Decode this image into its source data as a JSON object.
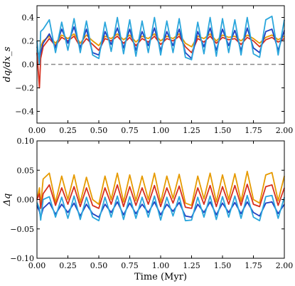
{
  "chart_data": [
    {
      "type": "line",
      "title": "",
      "xlabel": "",
      "ylabel": "dq/dx_s",
      "xlim": [
        0.0,
        2.0
      ],
      "ylim": [
        -0.5,
        0.5
      ],
      "xticks": [
        "0.00",
        "0.25",
        "0.50",
        "0.75",
        "1.00",
        "1.25",
        "1.50",
        "1.75",
        "2.00"
      ],
      "yticks": [
        "−0.4",
        "−0.2",
        "0.0",
        "0.2",
        "0.4"
      ],
      "grid": false,
      "reference_line": {
        "y": 0.0,
        "style": "dashed",
        "color": "#8a8a8a"
      },
      "x": [
        0.0,
        0.02,
        0.03,
        0.05,
        0.1,
        0.15,
        0.2,
        0.25,
        0.3,
        0.35,
        0.4,
        0.45,
        0.5,
        0.55,
        0.6,
        0.65,
        0.7,
        0.75,
        0.8,
        0.85,
        0.9,
        0.95,
        1.0,
        1.05,
        1.1,
        1.15,
        1.2,
        1.25,
        1.3,
        1.35,
        1.4,
        1.45,
        1.5,
        1.55,
        1.6,
        1.65,
        1.7,
        1.75,
        1.8,
        1.85,
        1.9,
        1.95,
        2.0
      ],
      "series": [
        {
          "color": "#e69a00",
          "values": [
            0.12,
            0.08,
            0.15,
            0.2,
            0.24,
            0.18,
            0.25,
            0.22,
            0.26,
            0.18,
            0.25,
            0.2,
            0.16,
            0.24,
            0.22,
            0.26,
            0.21,
            0.25,
            0.19,
            0.24,
            0.22,
            0.26,
            0.2,
            0.24,
            0.22,
            0.26,
            0.18,
            0.15,
            0.24,
            0.22,
            0.26,
            0.2,
            0.25,
            0.23,
            0.24,
            0.2,
            0.25,
            0.22,
            0.18,
            0.23,
            0.25,
            0.21,
            0.24
          ]
        },
        {
          "color": "#d7301f",
          "values": [
            0.1,
            -0.2,
            0.05,
            0.15,
            0.22,
            0.16,
            0.23,
            0.2,
            0.24,
            0.15,
            0.22,
            0.17,
            0.12,
            0.22,
            0.2,
            0.24,
            0.18,
            0.23,
            0.16,
            0.22,
            0.19,
            0.24,
            0.17,
            0.22,
            0.2,
            0.24,
            0.15,
            0.1,
            0.22,
            0.19,
            0.24,
            0.18,
            0.23,
            0.21,
            0.22,
            0.17,
            0.23,
            0.2,
            0.15,
            0.21,
            0.23,
            0.19,
            0.22
          ]
        },
        {
          "color": "#2140c0",
          "values": [
            0.15,
            0.05,
            0.1,
            0.18,
            0.26,
            0.14,
            0.3,
            0.18,
            0.32,
            0.14,
            0.3,
            0.1,
            0.08,
            0.28,
            0.17,
            0.31,
            0.14,
            0.3,
            0.12,
            0.28,
            0.16,
            0.31,
            0.12,
            0.28,
            0.16,
            0.3,
            0.1,
            0.05,
            0.28,
            0.15,
            0.31,
            0.12,
            0.3,
            0.16,
            0.29,
            0.12,
            0.31,
            0.14,
            0.1,
            0.28,
            0.3,
            0.12,
            0.29
          ]
        },
        {
          "color": "#2aa6dc",
          "values": [
            0.2,
            0.0,
            0.28,
            0.3,
            0.38,
            0.1,
            0.36,
            0.12,
            0.39,
            0.1,
            0.37,
            0.08,
            0.05,
            0.36,
            0.11,
            0.4,
            0.09,
            0.38,
            0.07,
            0.37,
            0.1,
            0.4,
            0.08,
            0.37,
            0.1,
            0.39,
            0.06,
            0.04,
            0.36,
            0.09,
            0.4,
            0.07,
            0.39,
            0.1,
            0.38,
            0.08,
            0.4,
            0.09,
            0.06,
            0.38,
            0.41,
            0.08,
            0.38
          ]
        }
      ]
    },
    {
      "type": "line",
      "title": "",
      "xlabel": "Time (Myr)",
      "ylabel": "Δq",
      "xlim": [
        0.0,
        2.0
      ],
      "ylim": [
        -0.1,
        0.1
      ],
      "xticks": [
        "0.00",
        "0.25",
        "0.50",
        "0.75",
        "1.00",
        "1.25",
        "1.50",
        "1.75",
        "2.00"
      ],
      "yticks": [
        "−0.10",
        "−0.05",
        "0.00",
        "0.05",
        "0.10"
      ],
      "grid": false,
      "x": [
        0.0,
        0.02,
        0.03,
        0.05,
        0.1,
        0.15,
        0.2,
        0.25,
        0.3,
        0.35,
        0.4,
        0.45,
        0.5,
        0.55,
        0.6,
        0.65,
        0.7,
        0.75,
        0.8,
        0.85,
        0.9,
        0.95,
        1.0,
        1.05,
        1.1,
        1.15,
        1.2,
        1.25,
        1.3,
        1.35,
        1.4,
        1.45,
        1.5,
        1.55,
        1.6,
        1.65,
        1.7,
        1.75,
        1.8,
        1.85,
        1.9,
        1.95,
        2.0
      ],
      "series": [
        {
          "color": "#e69a00",
          "values": [
            0.0,
            0.02,
            -0.01,
            0.035,
            0.045,
            -0.005,
            0.04,
            0.0,
            0.042,
            -0.005,
            0.038,
            0.0,
            -0.008,
            0.04,
            0.0,
            0.045,
            -0.004,
            0.042,
            -0.002,
            0.04,
            0.0,
            0.045,
            -0.005,
            0.04,
            0.002,
            0.043,
            -0.006,
            -0.01,
            0.04,
            0.001,
            0.045,
            -0.004,
            0.042,
            0.0,
            0.044,
            -0.003,
            0.048,
            0.0,
            -0.006,
            0.042,
            0.046,
            -0.002,
            0.04
          ]
        },
        {
          "color": "#d7301f",
          "values": [
            0.0,
            0.01,
            -0.015,
            0.01,
            0.025,
            -0.01,
            0.02,
            -0.008,
            0.022,
            -0.012,
            0.02,
            -0.01,
            -0.015,
            0.02,
            -0.008,
            0.025,
            -0.012,
            0.022,
            -0.01,
            0.02,
            -0.008,
            0.024,
            -0.012,
            0.02,
            -0.006,
            0.023,
            -0.013,
            -0.015,
            0.02,
            -0.008,
            0.024,
            -0.012,
            0.022,
            -0.008,
            0.024,
            -0.01,
            0.026,
            -0.008,
            -0.012,
            0.022,
            0.025,
            -0.01,
            0.02
          ]
        },
        {
          "color": "#2140c0",
          "values": [
            -0.01,
            -0.02,
            -0.03,
            -0.015,
            -0.005,
            -0.025,
            -0.008,
            -0.022,
            -0.006,
            -0.028,
            -0.008,
            -0.024,
            -0.03,
            -0.008,
            -0.022,
            -0.004,
            -0.026,
            -0.006,
            -0.024,
            -0.008,
            -0.022,
            -0.004,
            -0.026,
            -0.008,
            -0.02,
            -0.005,
            -0.028,
            -0.03,
            -0.008,
            -0.022,
            -0.004,
            -0.026,
            -0.006,
            -0.022,
            -0.005,
            -0.024,
            -0.004,
            -0.022,
            -0.028,
            -0.006,
            -0.004,
            -0.024,
            -0.008
          ]
        },
        {
          "color": "#2aa6dc",
          "values": [
            -0.005,
            -0.015,
            -0.035,
            0.0,
            0.005,
            -0.03,
            0.004,
            -0.032,
            0.006,
            -0.034,
            0.004,
            -0.03,
            -0.036,
            0.004,
            -0.03,
            0.006,
            -0.034,
            0.005,
            -0.032,
            0.004,
            -0.03,
            0.006,
            -0.035,
            0.004,
            -0.028,
            0.005,
            -0.036,
            -0.035,
            0.004,
            -0.03,
            0.006,
            -0.034,
            0.005,
            -0.03,
            0.006,
            -0.032,
            0.007,
            -0.03,
            -0.036,
            0.005,
            0.007,
            -0.032,
            0.004
          ]
        }
      ]
    }
  ]
}
